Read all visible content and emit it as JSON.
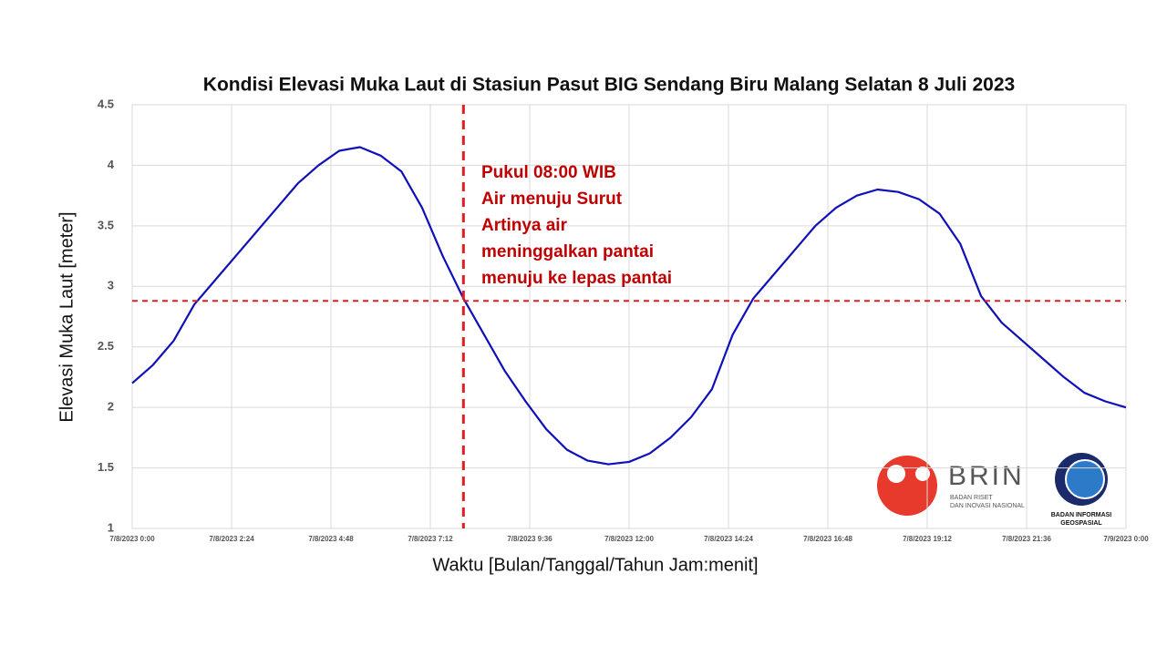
{
  "chart_data": {
    "type": "line",
    "title": "Kondisi Elevasi Muka Laut di Stasiun Pasut BIG Sendang Biru Malang Selatan 8 Juli 2023",
    "x_label": "Waktu [Bulan/Tanggal/Tahun Jam:menit]",
    "y_label": "Elevasi Muka Laut [meter]",
    "x": [
      0,
      0.5,
      1,
      1.5,
      2,
      2.5,
      3,
      3.5,
      4,
      4.5,
      5,
      5.5,
      6,
      6.5,
      7,
      7.5,
      8,
      8.5,
      9,
      9.5,
      10,
      10.5,
      11,
      11.5,
      12,
      12.5,
      13,
      13.5,
      14,
      14.5,
      15,
      15.5,
      16,
      16.5,
      17,
      17.5,
      18,
      18.5,
      19,
      19.5,
      20,
      20.5,
      21,
      21.5,
      22,
      22.5,
      23,
      23.5,
      24
    ],
    "series": [
      {
        "name": "Elevasi",
        "color": "#1010b8",
        "values": [
          2.2,
          2.35,
          2.55,
          2.85,
          3.05,
          3.25,
          3.45,
          3.65,
          3.85,
          4.0,
          4.12,
          4.15,
          4.08,
          3.95,
          3.65,
          3.25,
          2.9,
          2.6,
          2.3,
          2.05,
          1.82,
          1.65,
          1.56,
          1.53,
          1.55,
          1.62,
          1.75,
          1.92,
          2.15,
          2.6,
          2.9,
          3.1,
          3.3,
          3.5,
          3.65,
          3.75,
          3.8,
          3.78,
          3.72,
          3.6,
          3.35,
          2.92,
          2.7,
          2.55,
          2.4,
          2.25,
          2.12,
          2.05,
          2.0
        ]
      }
    ],
    "xlim": [
      0,
      24
    ],
    "xticks": [
      {
        "value": 0,
        "label": "7/8/2023 0:00"
      },
      {
        "value": 2.4,
        "label": "7/8/2023 2:24"
      },
      {
        "value": 4.8,
        "label": "7/8/2023 4:48"
      },
      {
        "value": 7.2,
        "label": "7/8/2023 7:12"
      },
      {
        "value": 9.6,
        "label": "7/8/2023 9:36"
      },
      {
        "value": 12,
        "label": "7/8/2023 12:00"
      },
      {
        "value": 14.4,
        "label": "7/8/2023 14:24"
      },
      {
        "value": 16.8,
        "label": "7/8/2023 16:48"
      },
      {
        "value": 19.2,
        "label": "7/8/2023 19:12"
      },
      {
        "value": 21.6,
        "label": "7/8/2023 21:36"
      },
      {
        "value": 24,
        "label": "7/9/2023 0:00"
      }
    ],
    "ylim": [
      1,
      4.5
    ],
    "yticks": [
      1,
      1.5,
      2,
      2.5,
      3,
      3.5,
      4,
      4.5
    ],
    "grid": true,
    "reference_lines": {
      "x": 8,
      "y": 2.88,
      "color": "#e02020"
    },
    "annotation": [
      "Pukul 08:00 WIB",
      "Air menuju Surut",
      "Artinya air",
      "meninggalkan pantai",
      "menuju ke lepas pantai"
    ],
    "logos": {
      "brin": "BRIN",
      "brin_sub": [
        "BADAN RISET",
        "DAN INOVASI NASIONAL"
      ],
      "big_sub": [
        "BADAN INFORMASI",
        "GEOSPASIAL"
      ]
    }
  }
}
